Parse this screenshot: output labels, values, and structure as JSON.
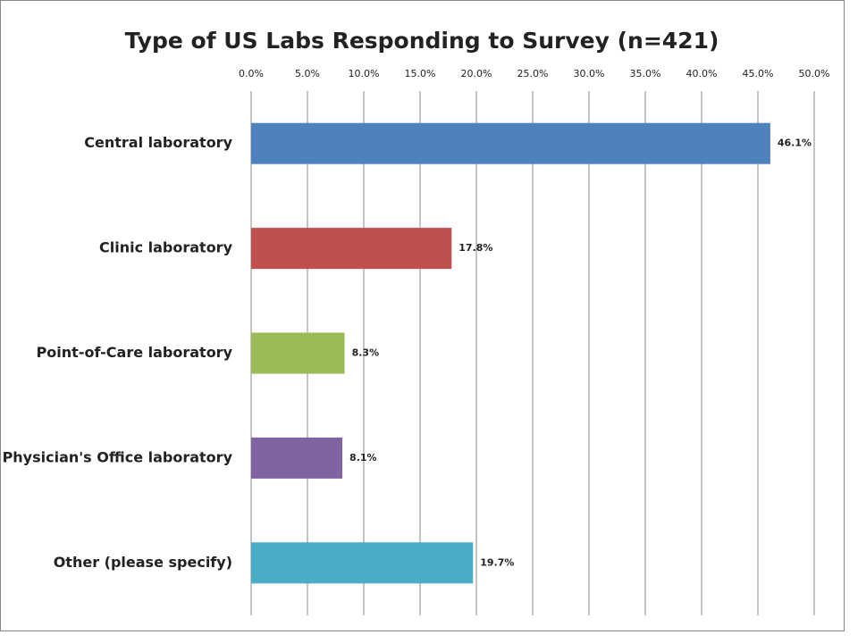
{
  "chart_data": {
    "type": "bar",
    "orientation": "horizontal",
    "title": "Type of US Labs Responding to Survey (n=421)",
    "categories": [
      "Central laboratory",
      "Clinic laboratory",
      "Point-of-Care laboratory",
      "Physician's Office laboratory",
      "Other (please specify)"
    ],
    "values": [
      46.1,
      17.8,
      8.3,
      8.1,
      19.7
    ],
    "value_labels": [
      "46.1%",
      "17.8%",
      "8.3%",
      "8.1%",
      "19.7%"
    ],
    "colors": [
      "#4f81bd",
      "#c0504d",
      "#9bbb59",
      "#8064a2",
      "#4bacc6"
    ],
    "xlim": [
      0,
      50
    ],
    "xticks": [
      {
        "value": 0,
        "label": "0.0%"
      },
      {
        "value": 5,
        "label": "5.0%"
      },
      {
        "value": 10,
        "label": "10.0%"
      },
      {
        "value": 15,
        "label": "15.0%"
      },
      {
        "value": 20,
        "label": "20.0%"
      },
      {
        "value": 25,
        "label": "25.0%"
      },
      {
        "value": 30,
        "label": "30.0%"
      },
      {
        "value": 35,
        "label": "35.0%"
      },
      {
        "value": 40,
        "label": "40.0%"
      },
      {
        "value": 45,
        "label": "45.0%"
      },
      {
        "value": 50,
        "label": "50.0%"
      }
    ],
    "grid": true
  }
}
